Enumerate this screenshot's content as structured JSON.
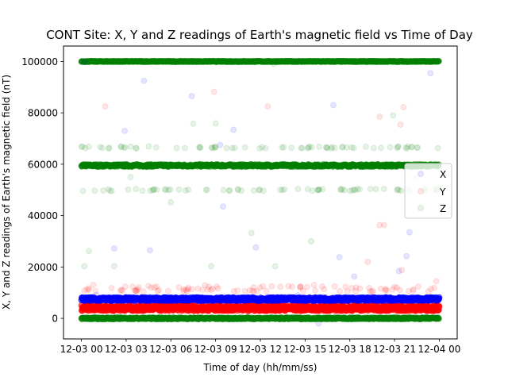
{
  "chart_data": {
    "type": "scatter",
    "title": "CONT Site: X, Y and Z readings of Earth's magnetic field vs Time of Day",
    "xlabel": "Time of day (hh/mm/ss)",
    "ylabel": "X, Y and Z readings of Earth's magnetic field (nT)",
    "x_ticks": [
      "12-03 00",
      "12-03 03",
      "12-03 06",
      "12-03 09",
      "12-03 12",
      "12-03 15",
      "12-03 18",
      "12-03 21",
      "12-04 00"
    ],
    "xlim_hours": [
      -1.2,
      25.2
    ],
    "y_ticks": [
      0,
      20000,
      40000,
      60000,
      80000,
      100000
    ],
    "ylim": [
      -8000,
      106000
    ],
    "legend_position": "center-right",
    "series": [
      {
        "name": "X",
        "color": "#0000ff",
        "band_value": 7500,
        "outliers": [
          {
            "hour": 0.2,
            "value": 99800
          },
          {
            "hour": 2.9,
            "value": 73000
          },
          {
            "hour": 4.2,
            "value": 92500
          },
          {
            "hour": 7.4,
            "value": 86500
          },
          {
            "hour": 10.2,
            "value": 73400
          },
          {
            "hour": 9.3,
            "value": 67500
          },
          {
            "hour": 9.5,
            "value": 43500
          },
          {
            "hour": 2.2,
            "value": 27200
          },
          {
            "hour": 4.6,
            "value": 26500
          },
          {
            "hour": 11.7,
            "value": 27600
          },
          {
            "hour": 16.9,
            "value": 83000
          },
          {
            "hour": 22.0,
            "value": 33500
          },
          {
            "hour": 21.3,
            "value": 18400
          },
          {
            "hour": 23.4,
            "value": 95400
          },
          {
            "hour": 15.9,
            "value": -2000
          },
          {
            "hour": 17.3,
            "value": 23800
          },
          {
            "hour": 21.8,
            "value": 24200
          },
          {
            "hour": 18.3,
            "value": 16300
          },
          {
            "hour": 1.0,
            "value": 9200
          },
          {
            "hour": 14.5,
            "value": 9000
          }
        ]
      },
      {
        "name": "Y",
        "color": "#ff0000",
        "band_value": 4000,
        "upper_band_value": 11500,
        "outliers": [
          {
            "hour": 1.6,
            "value": 82500
          },
          {
            "hour": 8.9,
            "value": 88200
          },
          {
            "hour": 12.5,
            "value": 82500
          },
          {
            "hour": 21.6,
            "value": 82200
          },
          {
            "hour": 20.0,
            "value": 78500
          },
          {
            "hour": 21.4,
            "value": 75400
          },
          {
            "hour": 20.0,
            "value": 36300
          },
          {
            "hour": 20.3,
            "value": 36300
          },
          {
            "hour": 19.2,
            "value": 22000
          },
          {
            "hour": 21.5,
            "value": 18800
          },
          {
            "hour": 23.8,
            "value": 14500
          },
          {
            "hour": 0.8,
            "value": 13000
          },
          {
            "hour": 4.5,
            "value": 12600
          },
          {
            "hour": 8.3,
            "value": 12900
          },
          {
            "hour": 15.6,
            "value": 13000
          }
        ]
      },
      {
        "name": "Z",
        "color": "#008000",
        "band_value": 59500,
        "upper_band_value": 100000,
        "lower_band_value": 0,
        "scatter_rows": [
          66500,
          50000
        ],
        "outliers": [
          {
            "hour": 0.5,
            "value": 26200
          },
          {
            "hour": 0.2,
            "value": 20300
          },
          {
            "hour": 2.2,
            "value": 20300
          },
          {
            "hour": 6.0,
            "value": 45200
          },
          {
            "hour": 8.7,
            "value": 20300
          },
          {
            "hour": 11.4,
            "value": 33200
          },
          {
            "hour": 13.0,
            "value": 20300
          },
          {
            "hour": 15.4,
            "value": 30000
          },
          {
            "hour": 3.3,
            "value": 55000
          },
          {
            "hour": 7.5,
            "value": 75800
          },
          {
            "hour": 9.0,
            "value": 75900
          },
          {
            "hour": 20.9,
            "value": 79000
          },
          {
            "hour": 12.9,
            "value": 99000
          },
          {
            "hour": 22.5,
            "value": 54800
          }
        ]
      }
    ]
  }
}
